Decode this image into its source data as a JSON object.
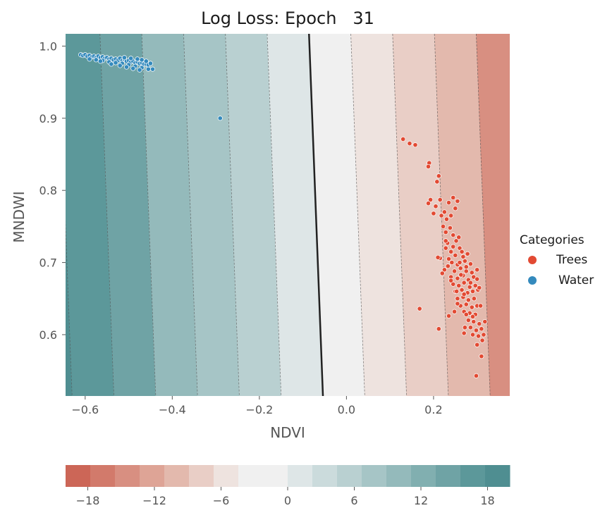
{
  "chart_data": {
    "type": "scatter",
    "title": "Log Loss: Epoch   31",
    "xlabel": "NDVI",
    "ylabel": "MNDWI",
    "xlim": [
      -0.645,
      0.375
    ],
    "ylim": [
      0.515,
      1.017
    ],
    "xticks": [
      "−0.6",
      "−0.4",
      "−0.2",
      "0.0",
      "0.2"
    ],
    "xtick_values": [
      -0.6,
      -0.4,
      -0.2,
      0.0,
      0.2
    ],
    "yticks": [
      "0.6",
      "0.7",
      "0.8",
      "0.9",
      "1.0"
    ],
    "ytick_values": [
      0.6,
      0.7,
      0.8,
      0.9,
      1.0
    ],
    "grid": false,
    "legend": {
      "title": "Categories",
      "position": "right",
      "entries": [
        "Trees",
        "Water"
      ]
    },
    "series": [
      {
        "name": "Trees",
        "color": "#e24a33",
        "points": [
          [
            0.13,
            0.871
          ],
          [
            0.145,
            0.865
          ],
          [
            0.158,
            0.863
          ],
          [
            0.19,
            0.838
          ],
          [
            0.188,
            0.833
          ],
          [
            0.212,
            0.82
          ],
          [
            0.208,
            0.812
          ],
          [
            0.215,
            0.787
          ],
          [
            0.225,
            0.77
          ],
          [
            0.193,
            0.787
          ],
          [
            0.188,
            0.782
          ],
          [
            0.205,
            0.778
          ],
          [
            0.245,
            0.79
          ],
          [
            0.255,
            0.785
          ],
          [
            0.2,
            0.768
          ],
          [
            0.218,
            0.765
          ],
          [
            0.23,
            0.76
          ],
          [
            0.24,
            0.765
          ],
          [
            0.25,
            0.775
          ],
          [
            0.238,
            0.748
          ],
          [
            0.228,
            0.742
          ],
          [
            0.245,
            0.738
          ],
          [
            0.258,
            0.735
          ],
          [
            0.232,
            0.727
          ],
          [
            0.252,
            0.73
          ],
          [
            0.228,
            0.72
          ],
          [
            0.24,
            0.715
          ],
          [
            0.26,
            0.72
          ],
          [
            0.215,
            0.706
          ],
          [
            0.235,
            0.705
          ],
          [
            0.25,
            0.71
          ],
          [
            0.268,
            0.708
          ],
          [
            0.278,
            0.712
          ],
          [
            0.242,
            0.7
          ],
          [
            0.255,
            0.697
          ],
          [
            0.272,
            0.702
          ],
          [
            0.285,
            0.698
          ],
          [
            0.225,
            0.69
          ],
          [
            0.248,
            0.688
          ],
          [
            0.262,
            0.692
          ],
          [
            0.275,
            0.688
          ],
          [
            0.288,
            0.686
          ],
          [
            0.3,
            0.69
          ],
          [
            0.22,
            0.685
          ],
          [
            0.24,
            0.68
          ],
          [
            0.255,
            0.678
          ],
          [
            0.268,
            0.682
          ],
          [
            0.28,
            0.676
          ],
          [
            0.292,
            0.68
          ],
          [
            0.245,
            0.67
          ],
          [
            0.258,
            0.668
          ],
          [
            0.27,
            0.672
          ],
          [
            0.283,
            0.666
          ],
          [
            0.296,
            0.668
          ],
          [
            0.25,
            0.66
          ],
          [
            0.265,
            0.662
          ],
          [
            0.278,
            0.658
          ],
          [
            0.29,
            0.66
          ],
          [
            0.302,
            0.662
          ],
          [
            0.255,
            0.65
          ],
          [
            0.268,
            0.652
          ],
          [
            0.28,
            0.648
          ],
          [
            0.293,
            0.65
          ],
          [
            0.262,
            0.64
          ],
          [
            0.275,
            0.642
          ],
          [
            0.288,
            0.638
          ],
          [
            0.3,
            0.64
          ],
          [
            0.27,
            0.632
          ],
          [
            0.283,
            0.63
          ],
          [
            0.296,
            0.628
          ],
          [
            0.255,
            0.643
          ],
          [
            0.28,
            0.62
          ],
          [
            0.292,
            0.618
          ],
          [
            0.305,
            0.615
          ],
          [
            0.285,
            0.61
          ],
          [
            0.298,
            0.606
          ],
          [
            0.31,
            0.608
          ],
          [
            0.29,
            0.6
          ],
          [
            0.303,
            0.598
          ],
          [
            0.312,
            0.592
          ],
          [
            0.3,
            0.586
          ],
          [
            0.318,
            0.618
          ],
          [
            0.315,
            0.6
          ],
          [
            0.27,
            0.602
          ],
          [
            0.272,
            0.61
          ],
          [
            0.168,
            0.636
          ],
          [
            0.212,
            0.608
          ],
          [
            0.235,
            0.626
          ],
          [
            0.248,
            0.632
          ],
          [
            0.275,
            0.694
          ],
          [
            0.265,
            0.715
          ],
          [
            0.245,
            0.722
          ],
          [
            0.233,
            0.695
          ],
          [
            0.263,
            0.683
          ],
          [
            0.253,
            0.66
          ],
          [
            0.31,
            0.57
          ],
          [
            0.298,
            0.543
          ],
          [
            0.24,
            0.675
          ],
          [
            0.26,
            0.7
          ],
          [
            0.27,
            0.656
          ],
          [
            0.285,
            0.672
          ],
          [
            0.275,
            0.628
          ],
          [
            0.3,
            0.677
          ],
          [
            0.305,
            0.665
          ],
          [
            0.308,
            0.64
          ],
          [
            0.21,
            0.707
          ],
          [
            0.222,
            0.75
          ],
          [
            0.235,
            0.783
          ],
          [
            0.228,
            0.73
          ],
          [
            0.29,
            0.625
          ]
        ]
      },
      {
        "name": "Water",
        "color": "#348abd",
        "points": [
          [
            -0.61,
            0.988
          ],
          [
            -0.605,
            0.987
          ],
          [
            -0.6,
            0.988
          ],
          [
            -0.595,
            0.986
          ],
          [
            -0.59,
            0.987
          ],
          [
            -0.585,
            0.985
          ],
          [
            -0.58,
            0.986
          ],
          [
            -0.575,
            0.984
          ],
          [
            -0.57,
            0.986
          ],
          [
            -0.565,
            0.984
          ],
          [
            -0.56,
            0.985
          ],
          [
            -0.555,
            0.983
          ],
          [
            -0.55,
            0.984
          ],
          [
            -0.545,
            0.982
          ],
          [
            -0.54,
            0.983
          ],
          [
            -0.535,
            0.981
          ],
          [
            -0.53,
            0.982
          ],
          [
            -0.525,
            0.98
          ],
          [
            -0.52,
            0.983
          ],
          [
            -0.515,
            0.98
          ],
          [
            -0.51,
            0.982
          ],
          [
            -0.505,
            0.979
          ],
          [
            -0.5,
            0.98
          ],
          [
            -0.495,
            0.978
          ],
          [
            -0.49,
            0.979
          ],
          [
            -0.485,
            0.977
          ],
          [
            -0.48,
            0.978
          ],
          [
            -0.475,
            0.976
          ],
          [
            -0.47,
            0.977
          ],
          [
            -0.465,
            0.975
          ],
          [
            -0.46,
            0.975
          ],
          [
            -0.455,
            0.974
          ],
          [
            -0.575,
            0.981
          ],
          [
            -0.56,
            0.98
          ],
          [
            -0.545,
            0.978
          ],
          [
            -0.53,
            0.977
          ],
          [
            -0.515,
            0.976
          ],
          [
            -0.5,
            0.974
          ],
          [
            -0.485,
            0.972
          ],
          [
            -0.47,
            0.97
          ],
          [
            -0.455,
            0.968
          ],
          [
            -0.52,
            0.973
          ],
          [
            -0.505,
            0.971
          ],
          [
            -0.49,
            0.969
          ],
          [
            -0.475,
            0.967
          ],
          [
            -0.54,
            0.975
          ],
          [
            -0.565,
            0.979
          ],
          [
            -0.59,
            0.982
          ],
          [
            -0.48,
            0.982
          ],
          [
            -0.495,
            0.983
          ],
          [
            -0.51,
            0.984
          ],
          [
            -0.47,
            0.981
          ],
          [
            -0.46,
            0.979
          ],
          [
            -0.45,
            0.976
          ],
          [
            -0.445,
            0.968
          ],
          [
            -0.29,
            0.9
          ]
        ]
      }
    ],
    "decision_boundary": [
      [
        -0.086,
        1.017
      ],
      [
        -0.054,
        0.515
      ]
    ],
    "contour_levels": [
      -18,
      -15,
      -12,
      -9,
      -6,
      -3,
      0,
      3,
      6,
      9,
      12,
      15,
      18
    ],
    "colorbar": {
      "ticks": [
        "−18",
        "−12",
        "−6",
        "0",
        "6",
        "12",
        "18"
      ],
      "tick_values": [
        -18,
        -12,
        -6,
        0,
        6,
        12,
        18
      ],
      "range": [
        -20,
        20
      ],
      "colors": [
        "#cc6657",
        "#d27a6b",
        "#d88f81",
        "#dea496",
        "#e3b9ad",
        "#e9cec6",
        "#eee3df",
        "#f0f0f0",
        "#f0f0f0",
        "#dee6e7",
        "#cbdbdc",
        "#b9d0d1",
        "#a6c5c6",
        "#94babb",
        "#81afb0",
        "#6fa3a5",
        "#5c989a",
        "#4f8e91"
      ]
    }
  }
}
